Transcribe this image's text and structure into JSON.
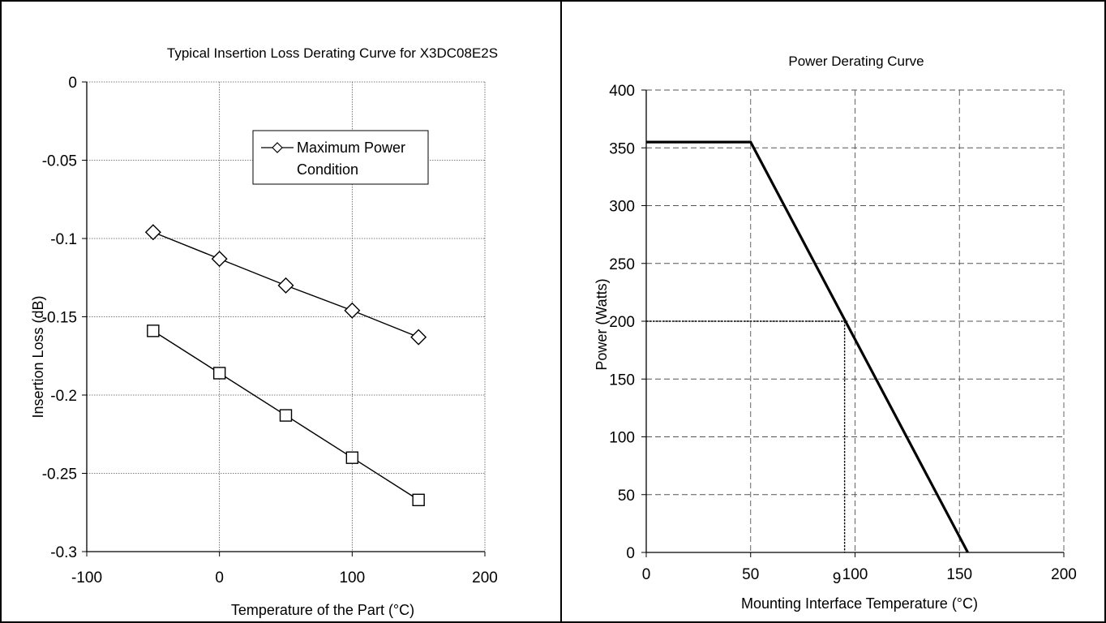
{
  "chart_data": [
    {
      "type": "line",
      "title": "Typical Insertion Loss Derating Curve for X3DC08E2S",
      "xlabel": "Temperature of the Part (°C)",
      "ylabel": "Insertion Loss (dB)",
      "xlim": [
        -100,
        200
      ],
      "ylim": [
        -0.3,
        0
      ],
      "xticks": [
        -100,
        0,
        100,
        200
      ],
      "yticks": [
        0,
        -0.05,
        -0.1,
        -0.15,
        -0.2,
        -0.25,
        -0.3
      ],
      "xtick_labels": [
        "-100",
        "0",
        "100",
        "200"
      ],
      "ytick_labels": [
        "0",
        "-0.05",
        "-0.1",
        "-0.15",
        "-0.2",
        "-0.25",
        "-0.3"
      ],
      "grid": "dotted",
      "legend_position": "top-right",
      "series": [
        {
          "name": "Maximum Power Condition",
          "legend_lines": [
            "Maximum Power",
            "Condition"
          ],
          "marker": "diamond",
          "x": [
            -50,
            0,
            50,
            100,
            150
          ],
          "y": [
            -0.096,
            -0.113,
            -0.13,
            -0.146,
            -0.163
          ]
        },
        {
          "marker": "square",
          "x": [
            -50,
            0,
            50,
            100,
            150
          ],
          "y": [
            -0.159,
            -0.186,
            -0.213,
            -0.24,
            -0.267
          ]
        }
      ]
    },
    {
      "type": "line",
      "title": "Power Derating Curve",
      "xlabel": "Mounting Interface Temperature (°C)",
      "ylabel": "Power (Watts)",
      "xlim": [
        0,
        200
      ],
      "ylim": [
        0,
        400
      ],
      "xticks": [
        0,
        50,
        100,
        150,
        200
      ],
      "yticks": [
        0,
        50,
        100,
        150,
        200,
        250,
        300,
        350,
        400
      ],
      "xtick_labels": [
        "0",
        "50",
        "100",
        "150",
        "200"
      ],
      "ytick_labels": [
        "0",
        "50",
        "100",
        "150",
        "200",
        "250",
        "300",
        "350",
        "400"
      ],
      "grid": "dashed",
      "series": [
        {
          "x": [
            0,
            50,
            154
          ],
          "y": [
            355,
            355,
            0
          ]
        }
      ],
      "reference_point": {
        "x": 95,
        "y": 200
      },
      "annotation": "9"
    }
  ]
}
